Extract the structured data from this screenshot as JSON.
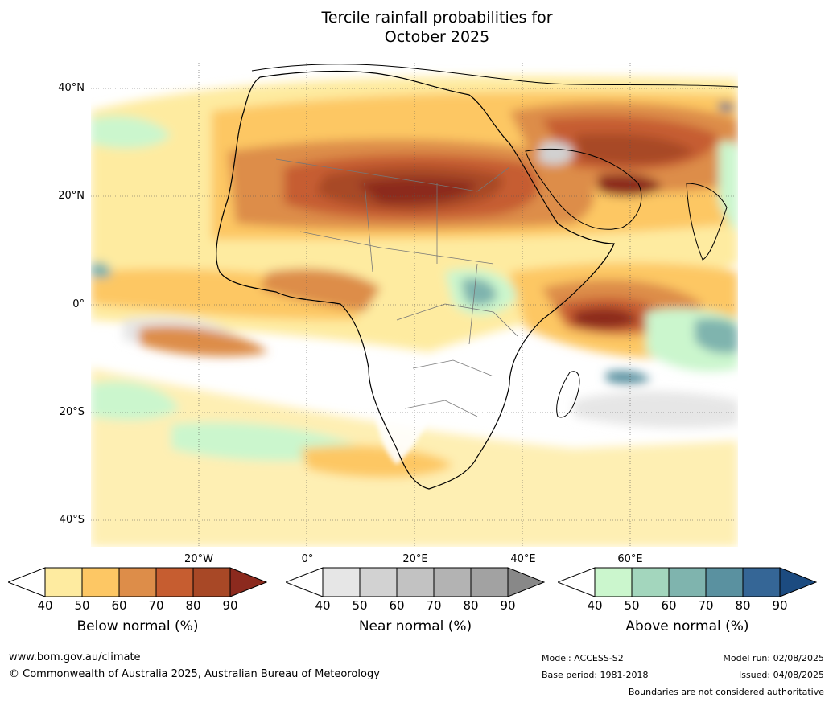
{
  "title_line1": "Tercile rainfall probabilities for",
  "title_line2": "October 2025",
  "lat_labels": [
    "40°N",
    "20°N",
    "0°",
    "20°S",
    "40°S"
  ],
  "lon_labels": [
    "20°W",
    "0°",
    "20°E",
    "40°E",
    "60°E"
  ],
  "colorbars": [
    {
      "label": "Below normal (%)",
      "ticks": [
        "40",
        "50",
        "60",
        "70",
        "80",
        "90"
      ],
      "colors": [
        "#ffffff",
        "#feeba0",
        "#fdc764",
        "#dd8d49",
        "#c65d30",
        "#a84826",
        "#8c2a1e"
      ]
    },
    {
      "label": "Near normal (%)",
      "ticks": [
        "40",
        "50",
        "60",
        "70",
        "80",
        "90"
      ],
      "colors": [
        "#ffffff",
        "#e6e6e6",
        "#d2d2d2",
        "#c2c2c2",
        "#b3b3b3",
        "#a2a2a2",
        "#888888"
      ]
    },
    {
      "label": "Above normal (%)",
      "ticks": [
        "40",
        "50",
        "60",
        "70",
        "80",
        "90"
      ],
      "colors": [
        "#ffffff",
        "#cbf6cd",
        "#a3d6bd",
        "#7fb4ae",
        "#5a91a0",
        "#356696",
        "#1c4b80"
      ]
    }
  ],
  "footer": {
    "website": "www.bom.gov.au/climate",
    "copyright": "© Commonwealth of Australia 2025, Australian Bureau of Meteorology",
    "model": "Model: ACCESS-S2",
    "base_period": "Base period: 1981-2018",
    "model_run": "Model run: 02/08/2025",
    "issued": "Issued: 04/08/2025",
    "disclaimer": "Boundaries are not considered authoritative"
  }
}
